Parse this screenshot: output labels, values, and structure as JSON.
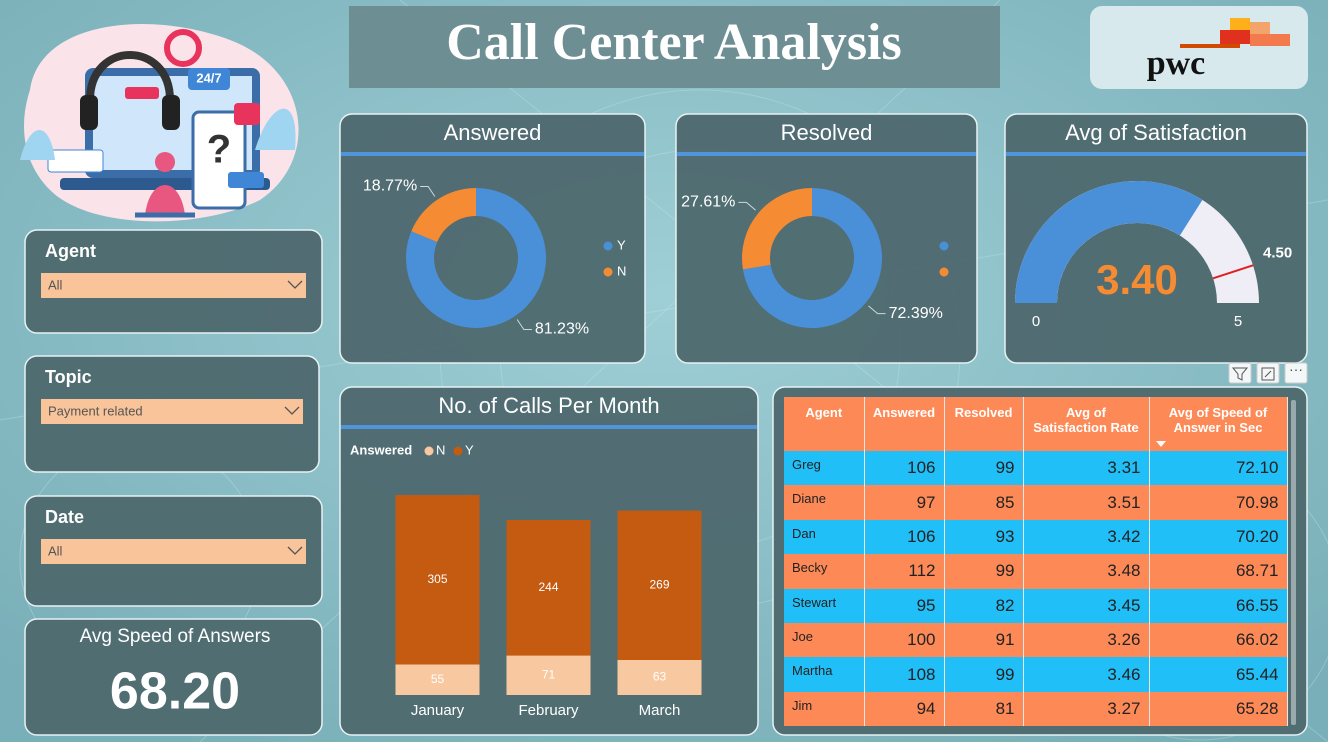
{
  "header": {
    "title": "Call Center Analysis",
    "logo": "pwc"
  },
  "illustration": {
    "badge": "24/7",
    "mark": "?"
  },
  "filters": [
    {
      "label": "Agent",
      "value": "All"
    },
    {
      "label": "Topic",
      "value": "Payment related"
    },
    {
      "label": "Date",
      "value": "All"
    }
  ],
  "kpi": {
    "title": "Avg Speed of Answers",
    "value": "68.20"
  },
  "chart_data": [
    {
      "type": "donut",
      "title": "Answered",
      "categories": [
        "Y",
        "N"
      ],
      "values": [
        81.23,
        18.77
      ],
      "value_labels": [
        "81.23%",
        "18.77%"
      ],
      "colors": [
        "#4a90d9",
        "#f58b32"
      ]
    },
    {
      "type": "donut",
      "title": "Resolved",
      "categories": [
        null,
        null
      ],
      "values": [
        72.39,
        27.61
      ],
      "value_labels": [
        "72.39%",
        "27.61%"
      ],
      "colors": [
        "#4a90d9",
        "#f58b32"
      ]
    },
    {
      "type": "gauge",
      "title": "Avg of Satisfaction",
      "value": 3.4,
      "value_label": "3.40",
      "target": 4.5,
      "target_label": "4.50",
      "ylim": [
        0,
        5
      ],
      "yticks": [
        0,
        5
      ],
      "color": "#4a90d9",
      "track_color": "#efedf5",
      "target_color": "#e02020",
      "value_color": "#f58b32"
    },
    {
      "type": "bar",
      "stacked": true,
      "title": "No. of Calls Per Month",
      "legend_title": "Answered",
      "categories": [
        "January",
        "February",
        "March"
      ],
      "series": [
        {
          "name": "N",
          "color": "#f8c9a0",
          "values": [
            55,
            71,
            63
          ]
        },
        {
          "name": "Y",
          "color": "#c55a11",
          "values": [
            305,
            244,
            269
          ]
        }
      ]
    }
  ],
  "table": {
    "columns": [
      "Agent",
      "Answered",
      "Resolved",
      "Avg of Satisfaction Rate",
      "Avg of Speed of Answer in Sec"
    ],
    "rows": [
      [
        "Greg",
        "106",
        "99",
        "3.31",
        "72.10"
      ],
      [
        "Diane",
        "97",
        "85",
        "3.51",
        "70.98"
      ],
      [
        "Dan",
        "106",
        "93",
        "3.42",
        "70.20"
      ],
      [
        "Becky",
        "112",
        "99",
        "3.48",
        "68.71"
      ],
      [
        "Stewart",
        "95",
        "82",
        "3.45",
        "66.55"
      ],
      [
        "Joe",
        "100",
        "91",
        "3.26",
        "66.02"
      ],
      [
        "Martha",
        "108",
        "99",
        "3.46",
        "65.44"
      ],
      [
        "Jim",
        "94",
        "81",
        "3.27",
        "65.28"
      ]
    ]
  }
}
